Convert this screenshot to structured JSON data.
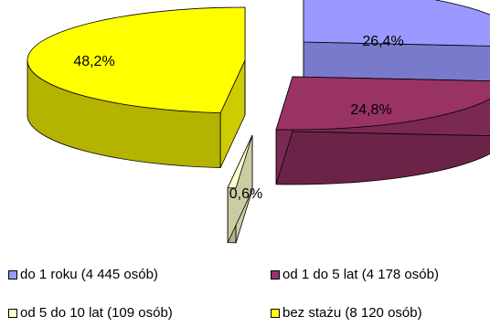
{
  "chart_data": {
    "type": "pie",
    "style": "3d-exploded",
    "slices": [
      {
        "label": "do 1 roku (4 445 osób)",
        "value": 26.4,
        "value_label": "26,4%",
        "color": "#9999ff"
      },
      {
        "label": "od 1 do 5 lat (4 178 osób)",
        "value": 24.8,
        "value_label": "24,8%",
        "color": "#993366"
      },
      {
        "label": "od 5 do 10 lat (109 osób)",
        "value": 0.6,
        "value_label": "0,6%",
        "color": "#ffffcc"
      },
      {
        "label": "bez stażu (8 120 osób)",
        "value": 48.2,
        "value_label": "48,2%",
        "color": "#ffff00"
      }
    ],
    "legend_position": "bottom"
  }
}
